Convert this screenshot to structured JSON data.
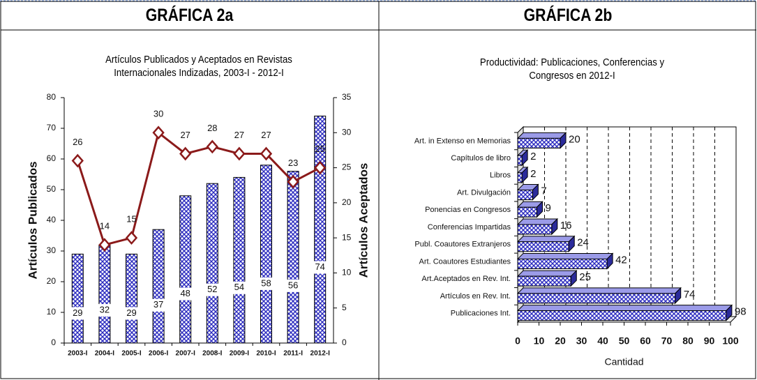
{
  "chart_data": [
    {
      "type": "bar",
      "header": "GRÁFICA 2a",
      "title": "Artículos Publicados y Aceptados en Revistas Internacionales Indizadas, 2003-I - 2012-I",
      "ylabel": "Artículos Publicados",
      "y2label": "Artículos Aceptados",
      "categories": [
        "2003-I",
        "2004-I",
        "2005-I",
        "2006-I",
        "2007-I",
        "2008-I",
        "2009-I",
        "2010-I",
        "2011-I",
        "2012-I"
      ],
      "series": [
        {
          "name": "Artículos Publicados",
          "color": "#2b2bbf",
          "values": [
            29,
            32,
            29,
            37,
            48,
            52,
            54,
            58,
            56,
            74
          ]
        },
        {
          "name": "Artículos Aceptados",
          "color": "#8b1a1a",
          "axis": "y2",
          "type": "line",
          "values": [
            26,
            14,
            15,
            30,
            27,
            28,
            27,
            27,
            23,
            25
          ]
        }
      ],
      "ylim": [
        0,
        80
      ],
      "yticks": [
        0,
        10,
        20,
        30,
        40,
        50,
        60,
        70,
        80
      ],
      "y2lim": [
        0,
        35
      ],
      "y2ticks": [
        0,
        5,
        10,
        15,
        20,
        25,
        30,
        35
      ]
    },
    {
      "type": "hbar",
      "header": "GRÁFICA 2b",
      "title": "Productividad: Publicaciones, Conferencias y Congresos en 2012-I",
      "xlabel": "Cantidad",
      "categories": [
        "Art. in Extenso en Memorias",
        "Capítulos de libro",
        "Libros",
        "Art. Divulgación",
        "Ponencias en Congresos",
        "Conferencias Impartidas",
        "Publ. Coautores Extranjeros",
        "Art. Coautores Estudiantes",
        "Art.Aceptados en Rev. Int.",
        "Artículos en Rev. Int.",
        "Publicaciones Int."
      ],
      "values": [
        20,
        2,
        2,
        7,
        9,
        16,
        24,
        42,
        25,
        74,
        98
      ],
      "color": "#2b2bbf",
      "xlim": [
        0,
        100
      ],
      "xticks": [
        0,
        10,
        20,
        30,
        40,
        50,
        60,
        70,
        80,
        90,
        100
      ],
      "grid": true
    }
  ]
}
